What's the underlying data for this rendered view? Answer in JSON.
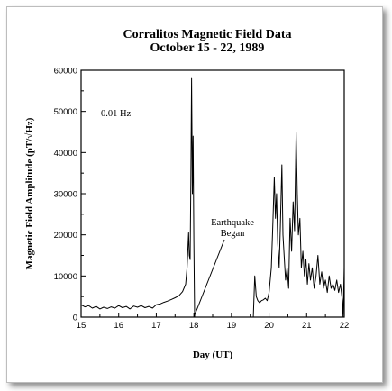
{
  "chart_data": {
    "type": "line",
    "title": "Corralitos Magnetic Field Data",
    "subtitle": "October 15 - 22, 1989",
    "xlabel": "Day (UT)",
    "ylabel": "Magnetic Field Amplitude (pT/√Hz)",
    "xlim": [
      15,
      22
    ],
    "ylim": [
      0,
      60000
    ],
    "x_ticks": [
      "15",
      "16",
      "17",
      "18",
      "19",
      "20",
      "21",
      "22"
    ],
    "y_ticks": [
      "0",
      "10000",
      "20000",
      "30000",
      "40000",
      "50000",
      "60000"
    ],
    "frequency_label": "0.01  Hz",
    "annotation": {
      "line1": "Earthquake",
      "line2": "Began",
      "x": 18.0,
      "y": 0
    },
    "grid": false,
    "series": [
      {
        "points": [
          [
            15.0,
            3000
          ],
          [
            15.1,
            2500
          ],
          [
            15.2,
            2800
          ],
          [
            15.3,
            2200
          ],
          [
            15.4,
            2600
          ],
          [
            15.5,
            2000
          ],
          [
            15.6,
            2400
          ],
          [
            15.7,
            2100
          ],
          [
            15.8,
            2500
          ],
          [
            15.9,
            2200
          ],
          [
            16.0,
            2800
          ],
          [
            16.1,
            2300
          ],
          [
            16.2,
            2600
          ],
          [
            16.3,
            2000
          ],
          [
            16.4,
            2700
          ],
          [
            16.5,
            2400
          ],
          [
            16.6,
            2800
          ],
          [
            16.7,
            2300
          ],
          [
            16.8,
            2600
          ],
          [
            16.9,
            2200
          ],
          [
            17.0,
            3000
          ],
          [
            17.1,
            3200
          ],
          [
            17.2,
            3600
          ],
          [
            17.3,
            3900
          ],
          [
            17.4,
            4300
          ],
          [
            17.5,
            4700
          ],
          [
            17.6,
            5200
          ],
          [
            17.7,
            6200
          ],
          [
            17.78,
            8000
          ],
          [
            17.82,
            12000
          ],
          [
            17.86,
            20500
          ],
          [
            17.88,
            15000
          ],
          [
            17.9,
            14000
          ],
          [
            17.92,
            33000
          ],
          [
            17.94,
            58000
          ],
          [
            17.96,
            30000
          ],
          [
            17.98,
            44000
          ],
          [
            18.0,
            19000
          ],
          [
            18.02,
            0
          ],
          [
            19.58,
            0
          ],
          [
            19.62,
            10000
          ],
          [
            19.66,
            5000
          ],
          [
            19.7,
            4000
          ],
          [
            19.75,
            3500
          ],
          [
            19.8,
            4000
          ],
          [
            19.85,
            4200
          ],
          [
            19.9,
            4600
          ],
          [
            19.95,
            4000
          ],
          [
            20.0,
            6000
          ],
          [
            20.06,
            12000
          ],
          [
            20.1,
            22000
          ],
          [
            20.14,
            34000
          ],
          [
            20.17,
            24000
          ],
          [
            20.2,
            30000
          ],
          [
            20.23,
            18000
          ],
          [
            20.27,
            12000
          ],
          [
            20.3,
            22000
          ],
          [
            20.34,
            37000
          ],
          [
            20.37,
            20000
          ],
          [
            20.4,
            15000
          ],
          [
            20.44,
            9000
          ],
          [
            20.48,
            12000
          ],
          [
            20.52,
            7000
          ],
          [
            20.56,
            24000
          ],
          [
            20.6,
            16000
          ],
          [
            20.64,
            28000
          ],
          [
            20.68,
            21000
          ],
          [
            20.72,
            45000
          ],
          [
            20.75,
            30000
          ],
          [
            20.78,
            20000
          ],
          [
            20.82,
            24000
          ],
          [
            20.86,
            12000
          ],
          [
            20.9,
            16000
          ],
          [
            20.94,
            10000
          ],
          [
            20.98,
            14000
          ],
          [
            21.02,
            8000
          ],
          [
            21.06,
            13000
          ],
          [
            21.1,
            9000
          ],
          [
            21.15,
            12000
          ],
          [
            21.2,
            7000
          ],
          [
            21.25,
            10000
          ],
          [
            21.3,
            15000
          ],
          [
            21.35,
            8000
          ],
          [
            21.4,
            11000
          ],
          [
            21.45,
            7000
          ],
          [
            21.5,
            9000
          ],
          [
            21.55,
            6000
          ],
          [
            21.6,
            10000
          ],
          [
            21.65,
            7000
          ],
          [
            21.7,
            8000
          ],
          [
            21.75,
            6500
          ],
          [
            21.8,
            9000
          ],
          [
            21.85,
            6000
          ],
          [
            21.9,
            8000
          ],
          [
            21.95,
            4000
          ],
          [
            21.97,
            0
          ],
          [
            22.0,
            12000
          ]
        ]
      }
    ]
  }
}
